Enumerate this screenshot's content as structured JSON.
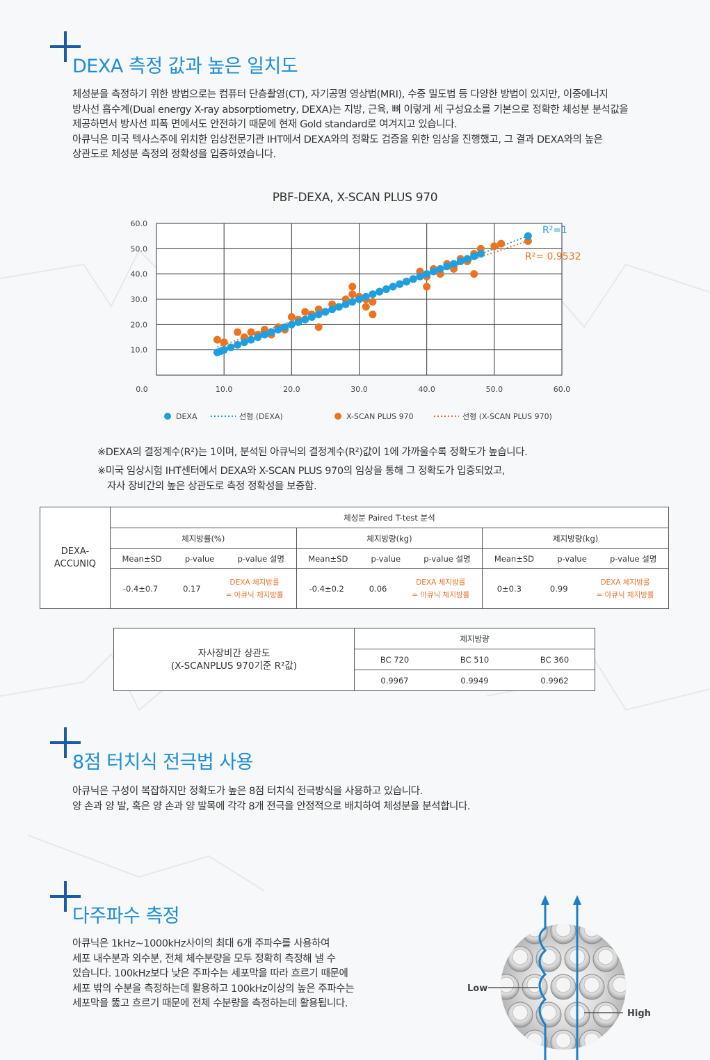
{
  "section1": {
    "title": "DEXA 측정 값과 높은 일치도",
    "paragraph": [
      "체성분을 측정하기 위한 방법으로는 컴퓨터 단층촬영(CT), 자기공명 영상법(MRI), 수중 밀도법 등 다양한 방법이 있지만, 이중에너지",
      "방사선 흡수계(Dual energy X-ray absorptiometry, DEXA)는 지방, 근육, 뼈 이렇게 세 구성요소를 기본으로 정확한 체성분 분석값을",
      "제공하면서 방사선 피폭 면에서도 안전하기 때문에 현재 Gold standard로 여겨지고 있습니다.",
      "아큐닉은 미국 텍사스주에 위치한 임상전문기관 IHT에서 DEXA와의 정확도 검증을 위한 임상을 진행했고, 그 결과 DEXA와의 높은",
      "상관도로 체성분 측정의 정확성을 입증하였습니다."
    ]
  },
  "chart_data": {
    "type": "scatter",
    "title": "PBF-DEXA, X-SCAN PLUS 970",
    "xlim": [
      0,
      60
    ],
    "ylim": [
      0,
      60
    ],
    "x_ticks": [
      "0.0",
      "10.0",
      "20.0",
      "30.0",
      "40.0",
      "50.0",
      "60.0"
    ],
    "y_ticks": [
      "10.0",
      "20.0",
      "30.0",
      "40.0",
      "50.0",
      "60.0"
    ],
    "grid": true,
    "legend_position": "bottom",
    "annotations": {
      "r2_dexa": "R²=1",
      "r2_xscan": "R²= 0.9532"
    },
    "series": [
      {
        "name": "DEXA",
        "color": "#1ea0e0",
        "x": [
          9,
          9.5,
          10,
          11,
          12,
          13,
          14,
          15,
          16,
          17,
          18,
          19,
          20,
          21,
          22,
          23,
          24,
          25,
          26,
          27,
          28,
          29,
          30,
          31,
          32,
          33,
          34,
          35,
          36,
          37,
          38,
          39,
          40,
          41,
          42,
          43,
          44,
          45,
          46,
          47,
          48,
          55
        ],
        "y": [
          9,
          9.5,
          10,
          11,
          12,
          13,
          14,
          15,
          16,
          17,
          18,
          19,
          20,
          21,
          22,
          23,
          24,
          25,
          26,
          27,
          28,
          29,
          30,
          31,
          32,
          33,
          34,
          35,
          36,
          37,
          38,
          39,
          40,
          41,
          42,
          43,
          44,
          45,
          46,
          47,
          48,
          55
        ]
      },
      {
        "name": "X-SCAN PLUS 970",
        "color": "#ee7320",
        "x": [
          9,
          10,
          12,
          13,
          14,
          15,
          16,
          17,
          18,
          19,
          20,
          21,
          22,
          23,
          24,
          25,
          26,
          27,
          28,
          29,
          30,
          31,
          32,
          33,
          34,
          35,
          36,
          37,
          38,
          39,
          40,
          41,
          42,
          43,
          44,
          45,
          46,
          47,
          48,
          50,
          51,
          55,
          29,
          31,
          17,
          24,
          32,
          40,
          44,
          47
        ],
        "y": [
          14,
          13,
          17,
          15,
          17,
          16,
          18,
          17,
          19,
          18,
          23,
          22,
          25,
          24,
          26,
          25,
          28,
          27,
          30,
          32,
          31,
          30,
          24,
          33,
          34,
          35,
          36,
          37,
          38,
          41,
          39,
          42,
          40,
          44,
          43,
          46,
          45,
          48,
          50,
          51,
          52,
          53,
          35,
          27,
          16,
          19,
          29,
          35,
          42,
          40
        ]
      }
    ],
    "legend": [
      {
        "label": "DEXA",
        "kind": "dot",
        "color": "#1ea0e0"
      },
      {
        "label": "선형 (DEXA)",
        "kind": "line",
        "color": "#1ea0e0"
      },
      {
        "label": "X-SCAN PLUS 970",
        "kind": "dot",
        "color": "#ee7320"
      },
      {
        "label": "선형 (X-SCAN PLUS 970)",
        "kind": "line",
        "color": "#ee7320"
      }
    ]
  },
  "notes": [
    "※DEXA의 결정계수(R²)는 1이며, 분석된 아큐닉의 결정계수(R²)값이 1에 가까울수록 정확도가 높습니다.",
    "※미국 임상시험 IHT센터에서 DEXA와 X-SCAN PLUS 970의 임상을 통해 그 정확도가 입증되었고,",
    "자사 장비간의 높은 상관도로 측정 정확성을 보증함."
  ],
  "ttest_table": {
    "row_label": [
      "DEXA-",
      "ACCUNIQ"
    ],
    "title": "체성분 Paired T-test 분석",
    "groups": [
      {
        "name": "체지방률(%)",
        "mean_sd": "-0.4±0.7",
        "p_value": "0.17",
        "desc": [
          "DEXA 체지방률",
          "= 아큐닉 체지방률"
        ]
      },
      {
        "name": "체지방량(kg)",
        "mean_sd": "-0.4±0.2",
        "p_value": "0.06",
        "desc": [
          "DEXA 체지방률",
          "= 아큐닉 체지방률"
        ]
      },
      {
        "name": "제지방량(kg)",
        "mean_sd": "0±0.3",
        "p_value": "0.99",
        "desc": [
          "DEXA 체지방률",
          "= 아큐닉 체지방률"
        ]
      }
    ],
    "col_headers": [
      "Mean±SD",
      "p-value",
      "p-value 설명"
    ]
  },
  "corr_table": {
    "row_label": [
      "자사장비간 상관도",
      "(X-SCANPLUS 970기준 R²값)"
    ],
    "title": "제지방량",
    "models": [
      "BC 720",
      "BC 510",
      "BC 360"
    ],
    "values": [
      "0.9967",
      "0.9949",
      "0.9962"
    ]
  },
  "section2": {
    "title": "8점 터치식 전극법 사용",
    "paragraph": [
      "아큐닉은 구성이 복잡하지만 정확도가 높은 8점 터치식 전극방식을 사용하고 있습니다.",
      "양 손과 양 발, 혹은 양 손과 양 발목에 각각 8개 전극을 안정적으로 배치하여 체성분을 분석합니다."
    ]
  },
  "section3": {
    "title": "다주파수 측정",
    "paragraph": [
      "아큐닉은 1kHz~1000kHz사이의 최대 6개 주파수를 사용하여",
      "세포 내수분과 외수분, 전체 체수분량을 모두 정확히 측정해 낼 수",
      "있습니다. 100kHz보다 낮은 주파수는 세포막을 따라 흐르기 때문에",
      "세포 밖의 수분을 측정하는데 활용하고 100kHz이상의 높은 주파수는",
      "세포막을 뚫고 흐르기 때문에 전체 수분량을 측정하는데 활용됩니다."
    ],
    "label_low": "Low",
    "label_high": "High"
  }
}
